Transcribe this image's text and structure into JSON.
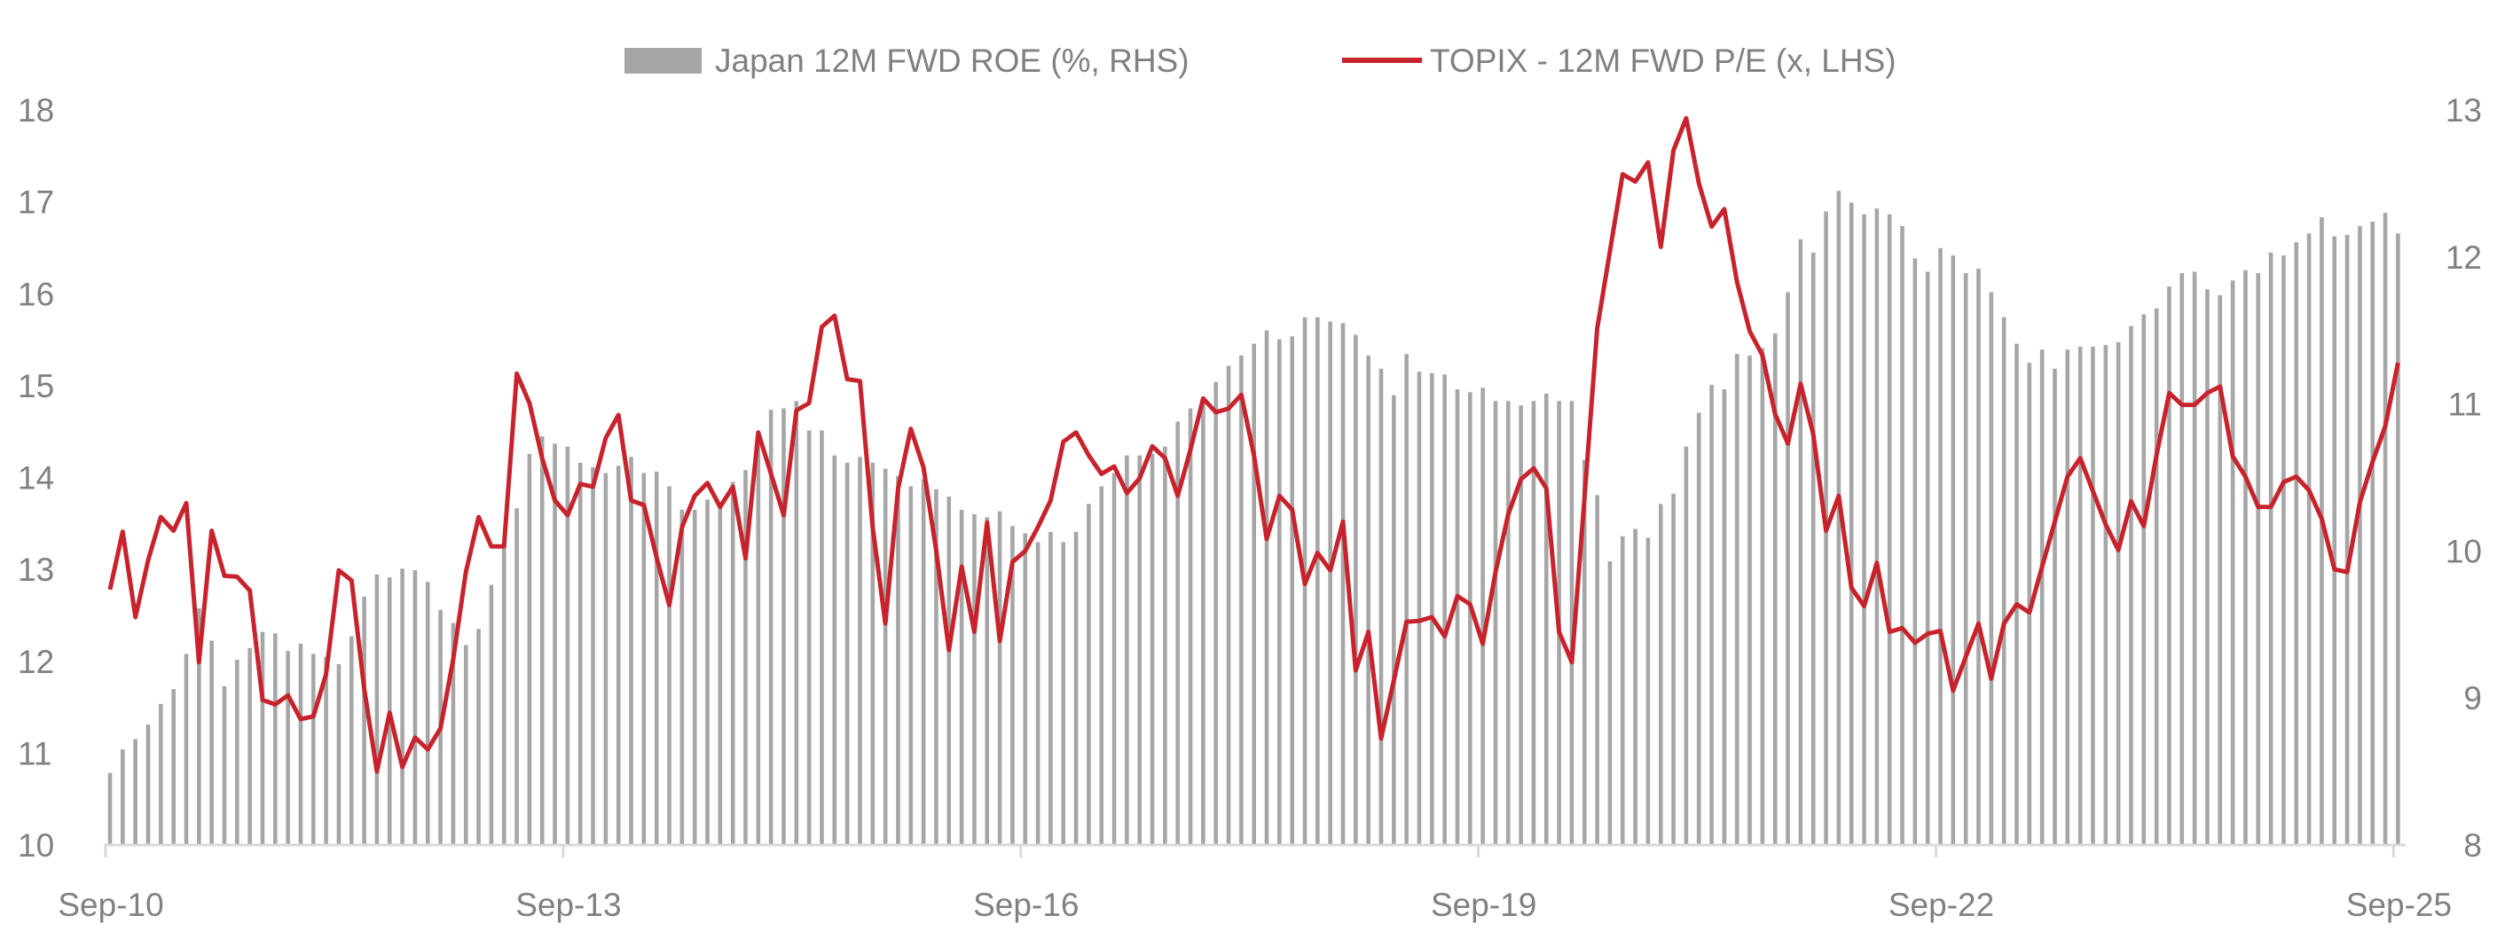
{
  "chart_data": {
    "type": "bar+line",
    "title": "",
    "frequency": "monthly",
    "x_range": [
      "Sep-10",
      "Sep-25"
    ],
    "x_ticks": [
      "Sep-10",
      "Sep-13",
      "Sep-16",
      "Sep-19",
      "Sep-22",
      "Sep-25"
    ],
    "y_left": {
      "label": "TOPIX - 12M FWD P/E (x)",
      "ylim": [
        10,
        18
      ],
      "ticks": [
        "10",
        "11",
        "12",
        "13",
        "14",
        "15",
        "16",
        "17",
        "18"
      ]
    },
    "y_right": {
      "label": "Japan 12M FWD ROE (%)",
      "ylim": [
        8,
        13
      ],
      "ticks": [
        "8",
        "9",
        "10",
        "11",
        "12",
        "13"
      ]
    },
    "grid": false,
    "legend_position": "top-center",
    "series": [
      {
        "name": "Japan 12M FWD ROE (%, RHS)",
        "type": "bar",
        "axis": "right",
        "color": "#a6a6a6",
        "values": [
          8.49,
          8.65,
          8.72,
          8.82,
          8.96,
          9.06,
          9.3,
          9.61,
          9.39,
          9.08,
          9.26,
          9.34,
          9.45,
          9.44,
          9.32,
          9.37,
          9.3,
          9.28,
          9.23,
          9.42,
          9.69,
          9.84,
          9.82,
          9.88,
          9.87,
          9.79,
          9.6,
          9.51,
          9.36,
          9.47,
          9.77,
          10.03,
          10.29,
          10.66,
          10.78,
          10.73,
          10.71,
          10.6,
          10.57,
          10.53,
          10.58,
          10.64,
          10.53,
          10.54,
          10.44,
          10.28,
          10.28,
          10.35,
          10.33,
          10.47,
          10.55,
          10.81,
          10.96,
          10.97,
          11.02,
          10.82,
          10.82,
          10.65,
          10.6,
          10.64,
          10.6,
          10.56,
          10.51,
          10.44,
          10.49,
          10.42,
          10.37,
          10.28,
          10.25,
          10.23,
          10.27,
          10.17,
          10.12,
          10.06,
          10.13,
          10.06,
          10.13,
          10.32,
          10.44,
          10.53,
          10.65,
          10.65,
          10.66,
          10.71,
          10.88,
          10.97,
          11.04,
          11.15,
          11.26,
          11.33,
          11.41,
          11.5,
          11.44,
          11.46,
          11.59,
          11.59,
          11.56,
          11.55,
          11.47,
          11.33,
          11.24,
          11.06,
          11.34,
          11.22,
          11.21,
          11.2,
          11.1,
          11.08,
          11.11,
          11.02,
          11.02,
          10.99,
          11.02,
          11.07,
          11.02,
          11.02,
          10.62,
          10.38,
          9.93,
          10.1,
          10.15,
          10.09,
          10.32,
          10.39,
          10.71,
          10.94,
          11.13,
          11.1,
          11.34,
          11.33,
          11.38,
          11.48,
          11.76,
          12.12,
          12.03,
          12.31,
          12.45,
          12.37,
          12.29,
          12.33,
          12.29,
          12.21,
          11.99,
          11.9,
          12.06,
          12.01,
          11.89,
          11.92,
          11.76,
          11.59,
          11.41,
          11.28,
          11.37,
          11.24,
          11.37,
          11.39,
          11.39,
          11.4,
          11.42,
          11.53,
          11.61,
          11.65,
          11.8,
          11.89,
          11.9,
          11.78,
          11.74,
          11.84,
          11.91,
          11.89,
          12.03,
          12.01,
          12.1,
          12.16,
          12.27,
          12.14,
          12.15,
          12.21,
          12.24,
          12.3,
          12.16
        ]
      },
      {
        "name": "TOPIX - 12M FWD P/E (x, LHS)",
        "type": "line",
        "axis": "left",
        "color": "#c8232c",
        "values": [
          12.78,
          13.41,
          12.48,
          13.1,
          13.57,
          13.42,
          13.72,
          11.99,
          13.42,
          12.93,
          12.92,
          12.77,
          11.58,
          11.53,
          11.63,
          11.37,
          11.4,
          11.86,
          12.99,
          12.88,
          11.7,
          10.8,
          11.44,
          10.85,
          11.17,
          11.04,
          11.27,
          12.02,
          12.97,
          13.57,
          13.25,
          13.25,
          15.13,
          14.81,
          14.21,
          13.75,
          13.59,
          13.93,
          13.9,
          14.43,
          14.68,
          13.75,
          13.7,
          13.13,
          12.61,
          13.46,
          13.8,
          13.94,
          13.68,
          13.9,
          13.12,
          14.49,
          14.04,
          13.59,
          14.73,
          14.81,
          15.64,
          15.76,
          15.07,
          15.05,
          13.46,
          12.41,
          13.88,
          14.53,
          14.11,
          13.2,
          12.12,
          13.03,
          12.32,
          13.51,
          12.22,
          13.08,
          13.2,
          13.46,
          13.75,
          14.39,
          14.49,
          14.24,
          14.04,
          14.12,
          13.83,
          13.99,
          14.34,
          14.21,
          13.8,
          14.3,
          14.86,
          14.71,
          14.75,
          14.9,
          14.24,
          13.33,
          13.8,
          13.65,
          12.84,
          13.18,
          12.99,
          13.52,
          11.9,
          12.32,
          11.16,
          11.79,
          12.43,
          12.44,
          12.48,
          12.27,
          12.71,
          12.62,
          12.19,
          12.97,
          13.6,
          13.98,
          14.1,
          13.88,
          12.32,
          11.99,
          13.78,
          15.62,
          16.46,
          17.3,
          17.22,
          17.43,
          16.51,
          17.56,
          17.91,
          17.2,
          16.73,
          16.92,
          16.13,
          15.59,
          15.33,
          14.69,
          14.37,
          15.02,
          14.47,
          13.42,
          13.8,
          12.8,
          12.6,
          13.07,
          12.32,
          12.36,
          12.2,
          12.3,
          12.33,
          11.68,
          12.05,
          12.41,
          11.81,
          12.41,
          12.62,
          12.53,
          13.03,
          13.52,
          14.01,
          14.21,
          13.85,
          13.49,
          13.21,
          13.74,
          13.47,
          14.24,
          14.92,
          14.79,
          14.79,
          14.92,
          14.99,
          14.23,
          14.01,
          13.68,
          13.68,
          13.95,
          14.01,
          13.86,
          13.55,
          13.0,
          12.97,
          13.73,
          14.17,
          14.56,
          15.25
        ]
      }
    ]
  }
}
